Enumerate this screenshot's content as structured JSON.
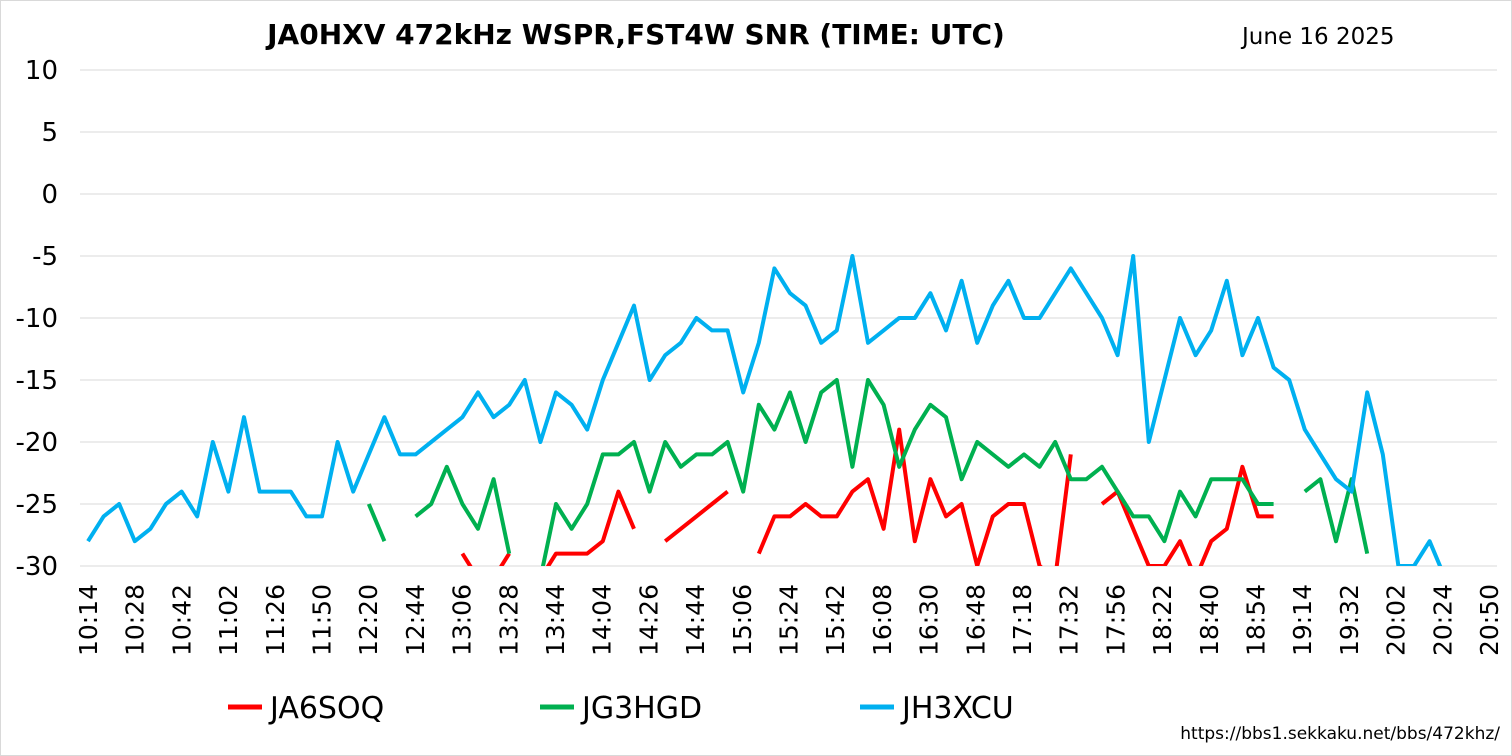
{
  "chart_data": {
    "type": "line",
    "title": "JA0HXV 472kHz WSPR,FST4W SNR (TIME: UTC)",
    "date_label": "June 16 2025",
    "source_url": "https://bbs1.sekkaku.net/bbs/472khz/",
    "ylim": [
      -30,
      10
    ],
    "yticks": [
      10,
      5,
      0,
      -5,
      -10,
      -15,
      -20,
      -25,
      -30
    ],
    "grid": true,
    "legend_position": "bottom",
    "x_tick_labels": [
      "10:14",
      "10:28",
      "10:42",
      "11:02",
      "11:26",
      "11:50",
      "12:20",
      "12:44",
      "13:06",
      "13:28",
      "13:44",
      "14:04",
      "14:26",
      "14:44",
      "15:06",
      "15:24",
      "15:42",
      "16:08",
      "16:30",
      "16:48",
      "17:18",
      "17:32",
      "17:56",
      "18:22",
      "18:40",
      "18:54",
      "19:14",
      "19:32",
      "20:02",
      "20:24",
      "20:50"
    ],
    "series": [
      {
        "name": "JA6SOQ",
        "color": "#ff0000",
        "values": [
          null,
          null,
          null,
          null,
          null,
          null,
          null,
          null,
          null,
          null,
          null,
          null,
          null,
          null,
          null,
          null,
          null,
          null,
          null,
          null,
          null,
          null,
          null,
          null,
          -29,
          -31,
          -31,
          -29,
          null,
          -31,
          -29,
          -29,
          -29,
          -28,
          -24,
          -27,
          null,
          -28,
          -27,
          -26,
          -25,
          -24,
          null,
          -29,
          -26,
          -26,
          -25,
          -26,
          -26,
          -24,
          -23,
          -27,
          -19,
          -28,
          -23,
          -26,
          -25,
          -30,
          -26,
          -25,
          -25,
          -30,
          -31,
          -21,
          null,
          -25,
          -24,
          -27,
          -30,
          -30,
          -28,
          -31,
          -28,
          -27,
          -22,
          -26,
          -26,
          null,
          null,
          null,
          null,
          null,
          null,
          null,
          null,
          null,
          null,
          null,
          null,
          null,
          null,
          null
        ]
      },
      {
        "name": "JG3HGD",
        "color": "#00b050",
        "values": [
          null,
          null,
          null,
          null,
          null,
          null,
          null,
          null,
          null,
          null,
          null,
          null,
          null,
          null,
          null,
          null,
          null,
          null,
          -25,
          -28,
          null,
          -26,
          -25,
          -22,
          -25,
          -27,
          -23,
          -29,
          null,
          -31,
          -25,
          -27,
          -25,
          -21,
          -21,
          -20,
          -24,
          -20,
          -22,
          -21,
          -21,
          -20,
          -24,
          -17,
          -19,
          -16,
          -20,
          -16,
          -15,
          -22,
          -15,
          -17,
          -22,
          -19,
          -17,
          -18,
          -23,
          -20,
          -21,
          -22,
          -21,
          -22,
          -20,
          -23,
          -23,
          -22,
          -24,
          -26,
          -26,
          -28,
          -24,
          -26,
          -23,
          -23,
          -23,
          -25,
          -25,
          null,
          -24,
          -23,
          -28,
          -23,
          -29,
          null,
          null,
          null,
          null,
          null,
          null,
          null,
          null,
          null
        ]
      },
      {
        "name": "JH3XCU",
        "color": "#00b0f0",
        "values": [
          -28,
          -26,
          -25,
          -28,
          -27,
          -25,
          -24,
          -26,
          -20,
          -24,
          -18,
          -24,
          -24,
          -24,
          -26,
          -26,
          -20,
          -24,
          -21,
          -18,
          -21,
          -21,
          -20,
          -19,
          -18,
          -16,
          -18,
          -17,
          -15,
          -20,
          -16,
          -17,
          -19,
          -15,
          -12,
          -9,
          -15,
          -13,
          -12,
          -10,
          -11,
          -11,
          -16,
          -12,
          -6,
          -8,
          -9,
          -12,
          -11,
          -5,
          -12,
          -11,
          -10,
          -10,
          -8,
          -11,
          -7,
          -12,
          -9,
          -7,
          -10,
          -10,
          -8,
          -6,
          -8,
          -10,
          -13,
          -5,
          -20,
          -15,
          -10,
          -13,
          -11,
          -7,
          -13,
          -10,
          -14,
          -15,
          -19,
          -21,
          -23,
          -24,
          -16,
          -21,
          -30,
          -30,
          -28,
          -31,
          null,
          -30
        ]
      }
    ]
  }
}
